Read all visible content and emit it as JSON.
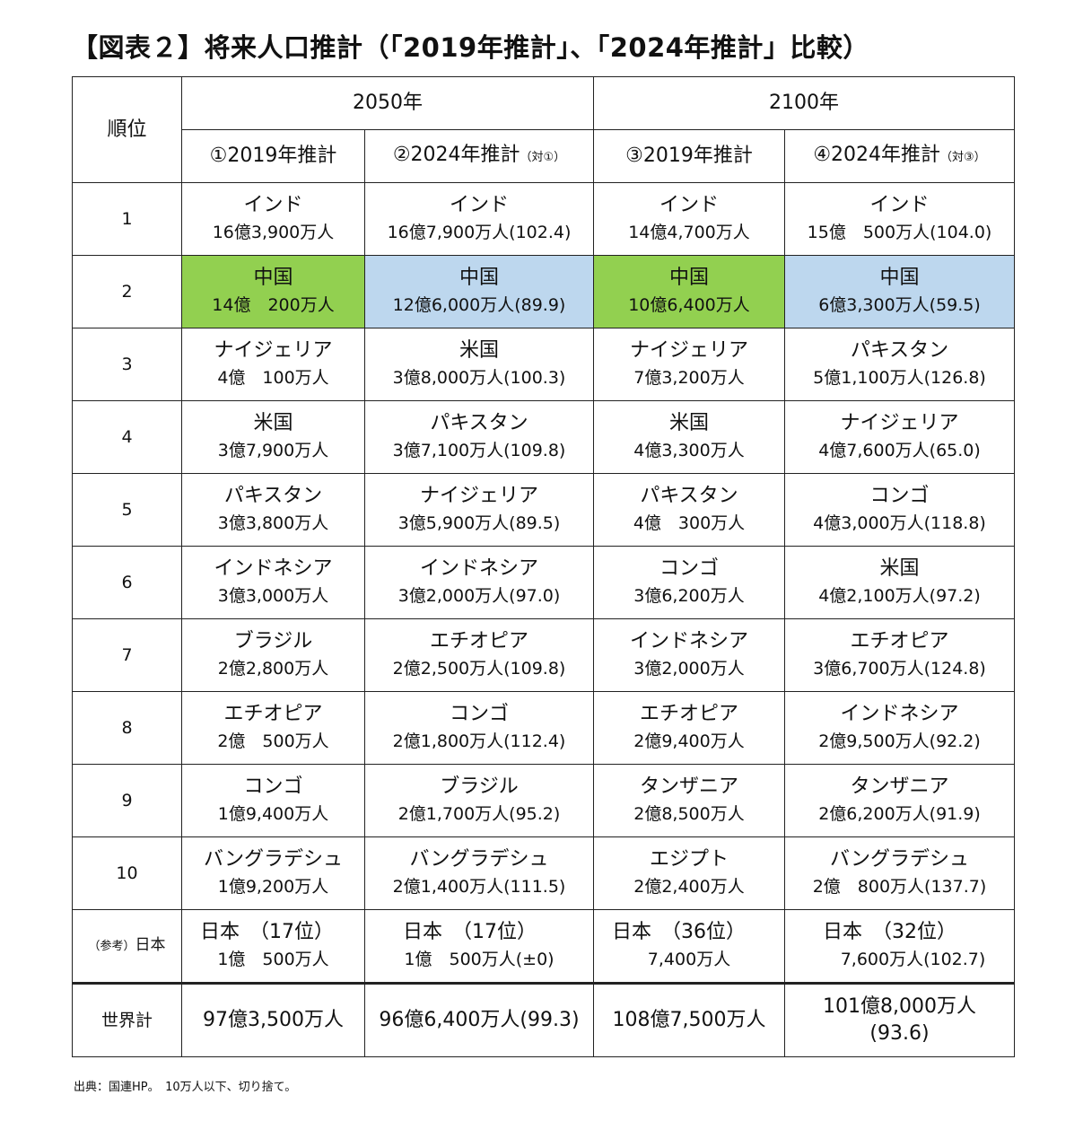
{
  "title": "【図表２】将来人口推計（「2019年推計」、「2024年推計」比較）",
  "header": {
    "rank_label": "順位",
    "year_2050": "2050年",
    "year_2100": "2100年",
    "col1": "①2019年推計",
    "col2": "②2024年推計",
    "col2_note": "（対①）",
    "col3": "③2019年推計",
    "col4": "④2024年推計",
    "col4_note": "（対③）"
  },
  "rows": [
    {
      "rank": "1",
      "c1": {
        "name": "インド",
        "value": "16億3,900万人"
      },
      "c2": {
        "name": "インド",
        "value": "16億7,900万人(102.4)"
      },
      "c3": {
        "name": "インド",
        "value": "14億4,700万人"
      },
      "c4": {
        "name": "インド",
        "value": "15億　500万人(104.0)"
      }
    },
    {
      "rank": "2",
      "c1": {
        "name": "中国",
        "value": "14億　200万人"
      },
      "c2": {
        "name": "中国",
        "value": "12億6,000万人(89.9)"
      },
      "c3": {
        "name": "中国",
        "value": "10億6,400万人"
      },
      "c4": {
        "name": "中国",
        "value": "6億3,300万人(59.5)"
      }
    },
    {
      "rank": "3",
      "c1": {
        "name": "ナイジェリア",
        "value": "4億　100万人"
      },
      "c2": {
        "name": "米国",
        "value": "3億8,000万人(100.3)"
      },
      "c3": {
        "name": "ナイジェリア",
        "value": "7億3,200万人"
      },
      "c4": {
        "name": "パキスタン",
        "value": "5億1,100万人(126.8)"
      }
    },
    {
      "rank": "4",
      "c1": {
        "name": "米国",
        "value": "3億7,900万人"
      },
      "c2": {
        "name": "パキスタン",
        "value": "3億7,100万人(109.8)"
      },
      "c3": {
        "name": "米国",
        "value": "4億3,300万人"
      },
      "c4": {
        "name": "ナイジェリア",
        "value": "4億7,600万人(65.0)"
      }
    },
    {
      "rank": "5",
      "c1": {
        "name": "パキスタン",
        "value": "3億3,800万人"
      },
      "c2": {
        "name": "ナイジェリア",
        "value": "3億5,900万人(89.5)"
      },
      "c3": {
        "name": "パキスタン",
        "value": "4億　300万人"
      },
      "c4": {
        "name": "コンゴ",
        "value": "4億3,000万人(118.8)"
      }
    },
    {
      "rank": "6",
      "c1": {
        "name": "インドネシア",
        "value": "3億3,000万人"
      },
      "c2": {
        "name": "インドネシア",
        "value": "3億2,000万人(97.0)"
      },
      "c3": {
        "name": "コンゴ",
        "value": "3億6,200万人"
      },
      "c4": {
        "name": "米国",
        "value": "4億2,100万人(97.2)"
      }
    },
    {
      "rank": "7",
      "c1": {
        "name": "ブラジル",
        "value": "2億2,800万人"
      },
      "c2": {
        "name": "エチオピア",
        "value": "2億2,500万人(109.8)"
      },
      "c3": {
        "name": "インドネシア",
        "value": "3億2,000万人"
      },
      "c4": {
        "name": "エチオピア",
        "value": "3億6,700万人(124.8)"
      }
    },
    {
      "rank": "8",
      "c1": {
        "name": "エチオピア",
        "value": "2億　500万人"
      },
      "c2": {
        "name": "コンゴ",
        "value": "2億1,800万人(112.4)"
      },
      "c3": {
        "name": "エチオピア",
        "value": "2億9,400万人"
      },
      "c4": {
        "name": "インドネシア",
        "value": "2億9,500万人(92.2)"
      }
    },
    {
      "rank": "9",
      "c1": {
        "name": "コンゴ",
        "value": "1億9,400万人"
      },
      "c2": {
        "name": "ブラジル",
        "value": "2億1,700万人(95.2)"
      },
      "c3": {
        "name": "タンザニア",
        "value": "2億8,500万人"
      },
      "c4": {
        "name": "タンザニア",
        "value": "2億6,200万人(91.9)"
      }
    },
    {
      "rank": "10",
      "c1": {
        "name": "バングラデシュ",
        "value": "1億9,200万人"
      },
      "c2": {
        "name": "バングラデシュ",
        "value": "2億1,400万人(111.5)"
      },
      "c3": {
        "name": "エジプト",
        "value": "2億2,400万人"
      },
      "c4": {
        "name": "バングラデシュ",
        "value": "2億　800万人(137.7)"
      }
    }
  ],
  "reference": {
    "label_prefix": "（参考）",
    "label": "日本",
    "c1": {
      "name": "日本　（17位）",
      "value": "1億　500万人"
    },
    "c2": {
      "name": "日本　（17位）",
      "value": "1億　500万人(±0)"
    },
    "c3": {
      "name": "日本　（36位）",
      "value": "7,400万人"
    },
    "c4": {
      "name": "日本　（32位）",
      "value": "7,600万人(102.7)"
    }
  },
  "world": {
    "label": "世界計",
    "c1": "97億3,500万人",
    "c2": "96億6,400万人(99.3)",
    "c3": "108億7,500万人",
    "c4_line1": "101億8,000万人",
    "c4_line2": "(93.6)"
  },
  "source": "出典：国連HP。　10万人以下、切り捨て。",
  "colors": {
    "china_2019": "#92d050",
    "china_2024": "#bdd7ee"
  }
}
